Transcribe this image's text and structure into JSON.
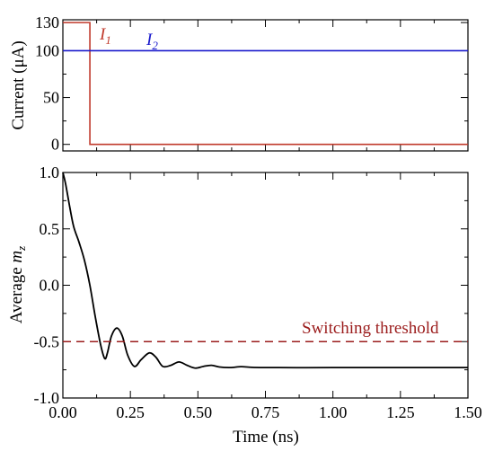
{
  "chart_data": [
    {
      "type": "line",
      "panel": "top",
      "xlim": [
        0.0,
        1.5
      ],
      "ylim": [
        -7,
        133
      ],
      "yticks": [
        0,
        50,
        100,
        130
      ],
      "ytick_labels": [
        "0",
        "50",
        "100",
        "130"
      ],
      "ylabel": "Current (μA)",
      "series": [
        {
          "name": "I1",
          "color": "#c0392b",
          "x": [
            0.0,
            0.1,
            0.1,
            1.5
          ],
          "y": [
            130,
            130,
            0,
            0
          ]
        },
        {
          "name": "I2",
          "color": "#1a1acc",
          "x": [
            0.0,
            1.5
          ],
          "y": [
            100,
            100
          ]
        }
      ],
      "legend_labels": {
        "I1_main": "I",
        "I1_sub": "1",
        "I2_main": "I",
        "I2_sub": "2"
      }
    },
    {
      "type": "line",
      "panel": "bottom",
      "xlim": [
        0.0,
        1.5
      ],
      "ylim": [
        -1.0,
        1.0
      ],
      "xticks": [
        0.0,
        0.25,
        0.5,
        0.75,
        1.0,
        1.25,
        1.5
      ],
      "xtick_labels": [
        "0.00",
        "0.25",
        "0.50",
        "0.75",
        "1.00",
        "1.25",
        "1.50"
      ],
      "yticks": [
        -1.0,
        -0.5,
        0.0,
        0.5,
        1.0
      ],
      "ytick_labels": [
        "-1.0",
        "-0.5",
        "0.0",
        "0.5",
        "1.0"
      ],
      "xlabel": "Time (ns)",
      "ylabel_main": "Average ",
      "ylabel_var": "m",
      "ylabel_sub": "z",
      "series": [
        {
          "name": "Average m_z",
          "color": "#000000",
          "x": [
            0.0,
            0.01,
            0.025,
            0.04,
            0.06,
            0.08,
            0.1,
            0.12,
            0.14,
            0.155,
            0.165,
            0.18,
            0.2,
            0.22,
            0.24,
            0.265,
            0.29,
            0.32,
            0.345,
            0.37,
            0.4,
            0.43,
            0.46,
            0.49,
            0.52,
            0.55,
            0.58,
            0.62,
            0.66,
            0.7,
            0.75,
            0.8,
            0.9,
            1.0,
            1.1,
            1.2,
            1.3,
            1.4,
            1.5
          ],
          "y": [
            1.0,
            0.9,
            0.7,
            0.52,
            0.38,
            0.22,
            0.0,
            -0.28,
            -0.53,
            -0.65,
            -0.6,
            -0.45,
            -0.38,
            -0.45,
            -0.62,
            -0.72,
            -0.66,
            -0.6,
            -0.64,
            -0.72,
            -0.71,
            -0.68,
            -0.71,
            -0.735,
            -0.72,
            -0.71,
            -0.725,
            -0.73,
            -0.722,
            -0.728,
            -0.73,
            -0.73,
            -0.731,
            -0.73,
            -0.73,
            -0.73,
            -0.73,
            -0.73,
            -0.73
          ]
        },
        {
          "name": "Switching threshold",
          "color": "#9b1c1c",
          "dashed": true,
          "x": [
            0.0,
            1.5
          ],
          "y": [
            -0.5,
            -0.5
          ]
        }
      ],
      "annotation": "Switching threshold"
    }
  ],
  "colors": {
    "I1": "#c0392b",
    "I2": "#1a1acc",
    "mz": "#000000",
    "threshold": "#9b1c1c"
  }
}
